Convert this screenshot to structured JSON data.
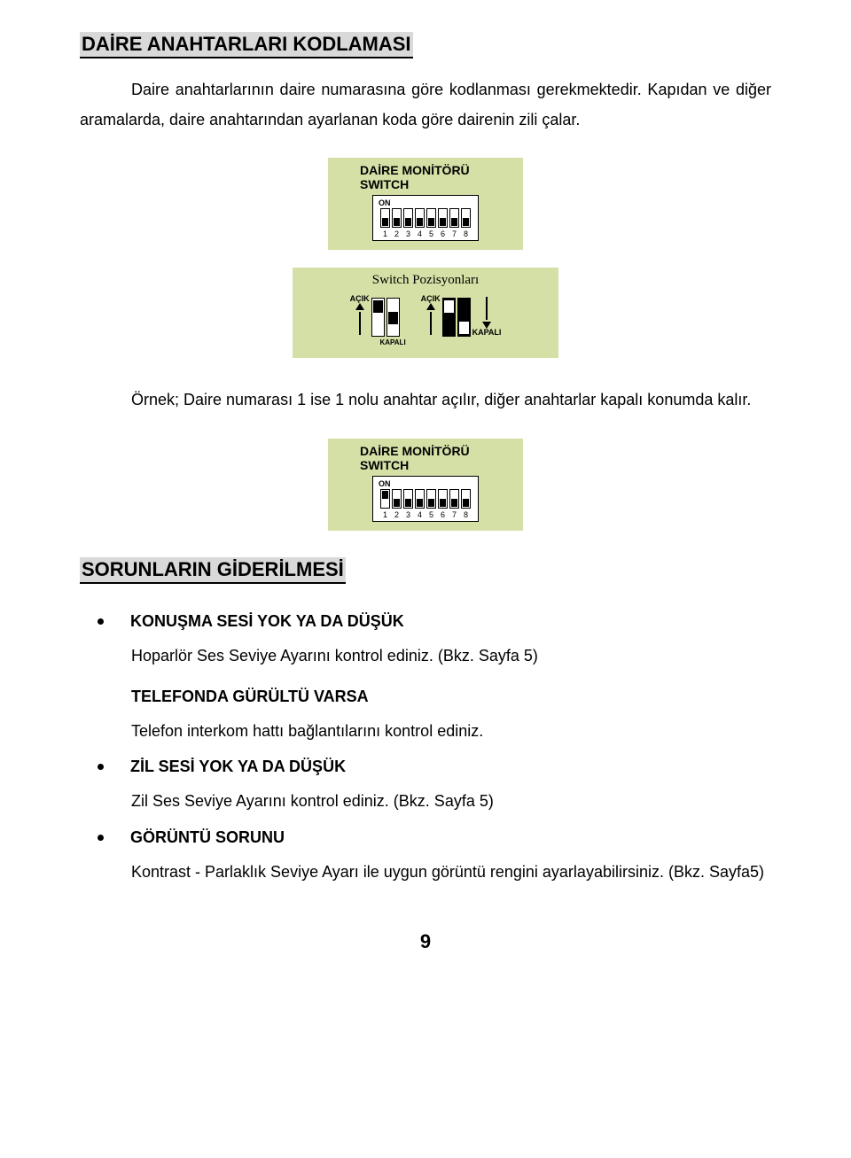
{
  "colors": {
    "card_bg": "#d5e0a7",
    "title_bg": "#d9d9d9",
    "page_bg": "#ffffff",
    "text": "#000000"
  },
  "section1": {
    "title": "DAİRE ANAHTARLARI KODLAMASI",
    "para": "Daire anahtarlarının daire numarasına göre kodlanması gerekmektedir. Kapıdan ve diğer aramalarda, daire anahtarından ayarlanan koda göre  dairenin zili çalar."
  },
  "switch_fig": {
    "title": "DAİRE MONİTÖRÜ SWITCH",
    "on_label": "ON",
    "numbers": [
      "1",
      "2",
      "3",
      "4",
      "5",
      "6",
      "7",
      "8"
    ],
    "all_down": [
      "down",
      "down",
      "down",
      "down",
      "down",
      "down",
      "down",
      "down"
    ],
    "example_pos": [
      "up",
      "down",
      "down",
      "down",
      "down",
      "down",
      "down",
      "down"
    ],
    "positions_title": "Switch Pozisyonları",
    "label_open": "AÇIK",
    "label_closed": "KAPALI"
  },
  "example_text": "Örnek;  Daire numarası 1 ise  1 nolu anahtar açılır, diğer anahtarlar kapalı konumda kalır.",
  "section2": {
    "title": "SORUNLARIN GİDERİLMESİ",
    "items": [
      {
        "heading": "KONUŞMA SESİ YOK YA DA DÜŞÜK",
        "text": "Hoparlör Ses Seviye Ayarını kontrol ediniz. (Bkz. Sayfa 5)",
        "sub_heading": "TELEFONDA GÜRÜLTÜ VARSA",
        "sub_text": "Telefon interkom hattı bağlantılarını kontrol ediniz."
      },
      {
        "heading": "ZİL SESİ YOK YA DA DÜŞÜK",
        "text": "Zil Ses Seviye Ayarını kontrol ediniz. (Bkz. Sayfa 5)"
      },
      {
        "heading": "GÖRÜNTÜ SORUNU",
        "text": "Kontrast - Parlaklık Seviye Ayarı ile uygun görüntü rengini ayarlayabilirsiniz. (Bkz. Sayfa5)"
      }
    ]
  },
  "page_number": "9"
}
